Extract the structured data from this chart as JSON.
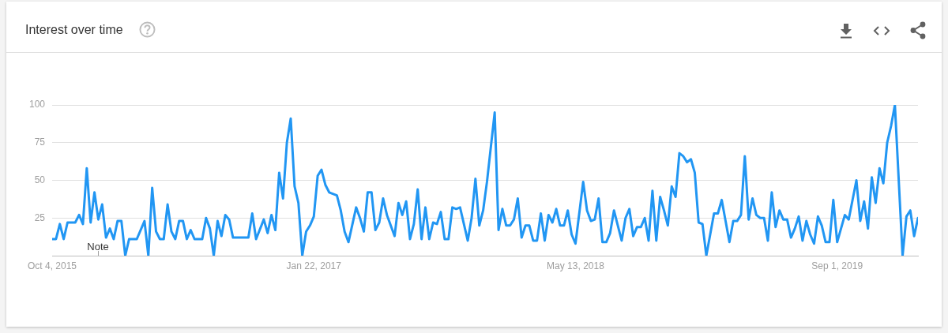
{
  "chart_data": {
    "type": "line",
    "title": "Interest over time",
    "x": [
      "2015-10-04",
      "2015-10-11",
      "2015-10-18",
      "2015-10-25",
      "2015-11-01",
      "2015-11-15",
      "2015-11-22",
      "2015-11-29",
      "2015-12-06",
      "2015-12-13",
      "2015-12-20",
      "2015-12-27",
      "2016-01-03",
      "2016-01-10",
      "2016-01-17",
      "2016-01-24",
      "2016-01-31",
      "2016-02-07",
      "2016-02-14",
      "2016-02-21",
      "2016-03-06",
      "2016-03-20",
      "2016-03-27",
      "2016-04-03",
      "2016-04-10",
      "2016-04-17",
      "2016-04-24",
      "2016-05-01",
      "2016-05-08",
      "2016-05-15",
      "2016-05-22",
      "2016-05-29",
      "2016-06-05",
      "2016-06-12",
      "2016-06-19",
      "2016-07-03",
      "2016-07-10",
      "2016-07-17",
      "2016-07-24",
      "2016-07-31",
      "2016-08-07",
      "2016-08-14",
      "2016-08-21",
      "2016-08-28",
      "2016-09-25",
      "2016-10-02",
      "2016-10-09",
      "2016-10-23",
      "2016-10-30",
      "2016-11-06",
      "2016-11-13",
      "2016-11-20",
      "2016-11-27",
      "2016-12-04",
      "2016-12-11",
      "2016-12-18",
      "2016-12-25",
      "2017-01-01",
      "2017-01-08",
      "2017-01-15",
      "2017-01-22",
      "2017-01-29",
      "2017-02-05",
      "2017-02-12",
      "2017-02-19",
      "2017-03-05",
      "2017-03-12",
      "2017-03-19",
      "2017-03-26",
      "2017-04-09",
      "2017-04-16",
      "2017-04-23",
      "2017-04-30",
      "2017-05-07",
      "2017-05-14",
      "2017-05-21",
      "2017-05-28",
      "2017-06-04",
      "2017-06-18",
      "2017-06-25",
      "2017-07-02",
      "2017-07-09",
      "2017-07-16",
      "2017-07-23",
      "2017-07-30",
      "2017-08-06",
      "2017-08-13",
      "2017-08-20",
      "2017-08-27",
      "2017-09-03",
      "2017-09-10",
      "2017-09-17",
      "2017-09-24",
      "2017-10-01",
      "2017-10-08",
      "2017-10-15",
      "2017-10-29",
      "2017-11-05",
      "2017-11-12",
      "2017-11-19",
      "2017-11-26",
      "2017-12-03",
      "2017-12-17",
      "2017-12-24",
      "2017-12-31",
      "2018-01-07",
      "2018-01-14",
      "2018-01-21",
      "2018-01-28",
      "2018-02-04",
      "2018-02-11",
      "2018-02-18",
      "2018-02-25",
      "2018-03-04",
      "2018-03-11",
      "2018-03-18",
      "2018-03-25",
      "2018-04-01",
      "2018-04-08",
      "2018-04-15",
      "2018-04-22",
      "2018-04-29",
      "2018-05-06",
      "2018-05-13",
      "2018-05-27",
      "2018-06-03",
      "2018-06-10",
      "2018-06-17",
      "2018-06-24",
      "2018-07-01",
      "2018-07-08",
      "2018-07-15",
      "2018-07-22",
      "2018-07-29",
      "2018-08-05",
      "2018-08-12",
      "2018-08-19",
      "2018-08-26",
      "2018-09-02",
      "2018-09-09",
      "2018-09-16",
      "2018-09-23",
      "2018-09-30",
      "2018-10-07",
      "2018-10-14",
      "2018-10-21",
      "2018-10-28",
      "2018-11-04",
      "2018-11-11",
      "2018-11-18",
      "2018-11-25",
      "2018-12-02",
      "2018-12-09",
      "2018-12-16",
      "2018-12-23",
      "2018-12-30",
      "2019-01-06",
      "2019-01-13",
      "2019-01-20",
      "2019-01-27",
      "2019-02-03",
      "2019-02-10",
      "2019-02-17",
      "2019-02-24",
      "2019-03-03",
      "2019-03-10",
      "2019-03-17",
      "2019-03-24",
      "2019-03-31",
      "2019-04-07",
      "2019-04-14",
      "2019-04-21",
      "2019-04-28",
      "2019-05-05",
      "2019-05-12",
      "2019-05-19",
      "2019-05-26",
      "2019-06-02",
      "2019-06-09",
      "2019-06-16",
      "2019-06-23",
      "2019-06-30",
      "2019-07-07",
      "2019-07-14",
      "2019-07-21",
      "2019-07-28",
      "2019-08-04",
      "2019-08-11",
      "2019-08-18",
      "2019-08-25",
      "2019-09-01",
      "2019-09-08",
      "2019-09-15",
      "2019-09-22",
      "2019-10-06",
      "2019-10-13",
      "2019-10-20",
      "2019-10-27",
      "2019-11-03",
      "2019-11-10",
      "2019-11-17",
      "2019-11-24",
      "2019-12-01",
      "2019-12-08",
      "2019-12-15",
      "2019-12-29",
      "2020-01-05",
      "2020-01-12",
      "2020-01-19",
      "2020-01-26"
    ],
    "values": [
      11,
      11,
      21,
      11,
      22,
      22,
      27,
      21,
      58,
      22,
      42,
      24,
      34,
      12,
      18,
      11,
      23,
      23,
      0,
      11,
      11,
      23,
      0,
      45,
      16,
      11,
      11,
      34,
      16,
      11,
      23,
      23,
      11,
      17,
      11,
      11,
      25,
      18,
      0,
      23,
      13,
      27,
      24,
      12,
      12,
      28,
      11,
      24,
      15,
      27,
      17,
      55,
      38,
      75,
      91,
      46,
      35,
      0,
      16,
      20,
      26,
      53,
      57,
      47,
      42,
      40,
      30,
      16,
      9,
      32,
      25,
      16,
      42,
      42,
      17,
      22,
      38,
      27,
      13,
      35,
      27,
      36,
      11,
      21,
      44,
      11,
      32,
      11,
      22,
      21,
      29,
      11,
      11,
      32,
      31,
      32,
      10,
      25,
      51,
      20,
      30,
      49,
      95,
      17,
      31,
      20,
      20,
      24,
      38,
      12,
      20,
      20,
      10,
      10,
      28,
      10,
      27,
      22,
      31,
      20,
      20,
      30,
      14,
      8,
      49,
      30,
      23,
      24,
      38,
      9,
      9,
      15,
      30,
      20,
      10,
      25,
      31,
      13,
      19,
      19,
      25,
      10,
      43,
      10,
      39,
      30,
      20,
      46,
      39,
      68,
      66,
      62,
      64,
      55,
      22,
      21,
      0,
      14,
      28,
      28,
      37,
      23,
      9,
      23,
      23,
      27,
      66,
      24,
      38,
      27,
      25,
      25,
      10,
      42,
      19,
      30,
      24,
      24,
      12,
      18,
      26,
      10,
      23,
      14,
      8,
      26,
      20,
      9,
      9,
      37,
      9,
      18,
      27,
      24,
      50,
      23,
      36,
      18,
      52,
      35,
      58,
      48,
      75,
      86,
      100,
      0,
      26,
      30,
      13,
      25
    ],
    "color": "#2196f3",
    "xlim": [
      "2015-10-04",
      "2020-01-26"
    ],
    "xticks": [
      {
        "value": "2015-10-04",
        "label": "Oct 4, 2015"
      },
      {
        "value": "2017-01-22",
        "label": "Jan 22, 2017"
      },
      {
        "value": "2018-05-13",
        "label": "May 13, 2018"
      },
      {
        "value": "2019-09-01",
        "label": "Sep 1, 2019"
      }
    ],
    "ylim": [
      0,
      100
    ],
    "yticks": [
      25,
      50,
      75,
      100
    ],
    "grid": "y",
    "legend": false,
    "annotations": [
      "Note"
    ]
  }
}
